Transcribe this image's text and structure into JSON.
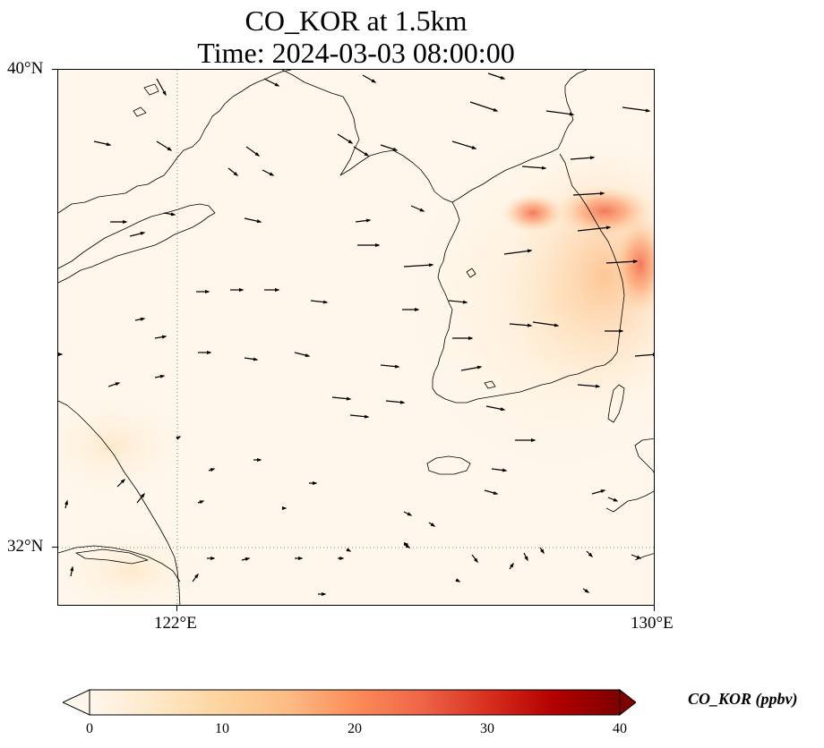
{
  "title": {
    "line1": "CO_KOR at 1.5km",
    "line2": "Time: 2024-03-03 08:00:00"
  },
  "map": {
    "lon_range": [
      120,
      130
    ],
    "lat_range": [
      31,
      40
    ],
    "lat_ticks": [
      {
        "value": 40,
        "label": "40°N"
      },
      {
        "value": 32,
        "label": "32°N"
      }
    ],
    "lon_ticks": [
      {
        "value": 122,
        "label": "122°E"
      },
      {
        "value": 130,
        "label": "130°E"
      }
    ],
    "gridlines": "dotted",
    "background_color": "#fff7ec",
    "coastline_color": "#000000"
  },
  "colorbar": {
    "label": "CO_KOR (ppbv)",
    "min": 0,
    "max": 40,
    "ticks": [
      0,
      10,
      20,
      30,
      40
    ],
    "colormap": "OrRd",
    "extend": "both",
    "colors": [
      "#fff7ec",
      "#fee8c8",
      "#fdd49e",
      "#fdbb84",
      "#fc8d59",
      "#ef6548",
      "#d7301f",
      "#b30000",
      "#7f0000"
    ]
  }
}
